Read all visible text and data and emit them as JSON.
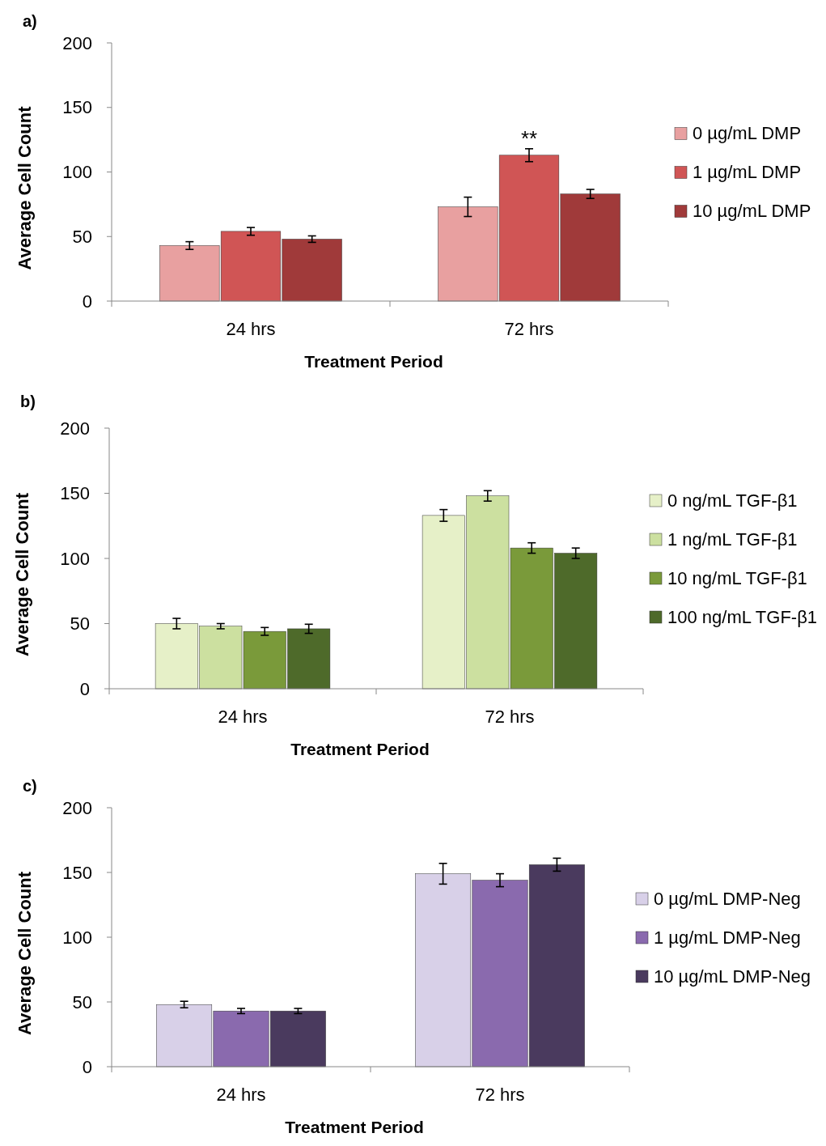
{
  "chart_data": [
    {
      "type": "bar",
      "title": "a)",
      "xlabel": "Treatment Period",
      "ylabel": "Average Cell Count",
      "categories": [
        "24 hrs",
        "72 hrs"
      ],
      "ylim": [
        0,
        200
      ],
      "yticks": [
        0,
        50,
        100,
        150,
        200
      ],
      "legend": "right",
      "annotations": [
        {
          "text": "**",
          "x": "72 hrs",
          "y": 119
        }
      ],
      "series": [
        {
          "name": "0 µg/mL DMP",
          "color": "#e8a0a0",
          "values": [
            43,
            73
          ],
          "errors": [
            3,
            7.5
          ]
        },
        {
          "name": "1 µg/mL DMP",
          "color": "#d05555",
          "values": [
            54,
            113
          ],
          "errors": [
            3,
            5
          ]
        },
        {
          "name": "10 µg/mL DMP",
          "color": "#a03a3a",
          "values": [
            48,
            83
          ],
          "errors": [
            2.5,
            3.5
          ]
        }
      ]
    },
    {
      "type": "bar",
      "title": "b)",
      "xlabel": "Treatment Period",
      "ylabel": "Average Cell Count",
      "categories": [
        "24 hrs",
        "72 hrs"
      ],
      "ylim": [
        0,
        200
      ],
      "yticks": [
        0,
        50,
        100,
        150,
        200
      ],
      "legend": "right",
      "series": [
        {
          "name": "0 ng/mL TGF-β1",
          "color": "#e6f0c8",
          "values": [
            50,
            133
          ],
          "errors": [
            4,
            4.5
          ]
        },
        {
          "name": "1 ng/mL TGF-β1",
          "color": "#cce0a0",
          "values": [
            48,
            148
          ],
          "errors": [
            2,
            4
          ]
        },
        {
          "name": "10 ng/mL TGF-β1",
          "color": "#7a9a3a",
          "values": [
            44,
            108
          ],
          "errors": [
            3,
            4
          ]
        },
        {
          "name": "100 ng/mL TGF-β1",
          "color": "#4e6a2a",
          "values": [
            46,
            104
          ],
          "errors": [
            3.5,
            4
          ]
        }
      ]
    },
    {
      "type": "bar",
      "title": "c)",
      "xlabel": "Treatment Period",
      "ylabel": "Average Cell Count",
      "categories": [
        "24 hrs",
        "72 hrs"
      ],
      "ylim": [
        0,
        200
      ],
      "yticks": [
        0,
        50,
        100,
        150,
        200
      ],
      "legend": "right",
      "series": [
        {
          "name": "0 µg/mL DMP-Neg",
          "color": "#d8d0e8",
          "values": [
            48,
            149
          ],
          "errors": [
            2.5,
            8
          ]
        },
        {
          "name": "1 µg/mL DMP-Neg",
          "color": "#8a6aae",
          "values": [
            43,
            144
          ],
          "errors": [
            2,
            5
          ]
        },
        {
          "name": "10 µg/mL DMP-Neg",
          "color": "#4a3a5e",
          "values": [
            43,
            156
          ],
          "errors": [
            2,
            5
          ]
        }
      ]
    }
  ]
}
